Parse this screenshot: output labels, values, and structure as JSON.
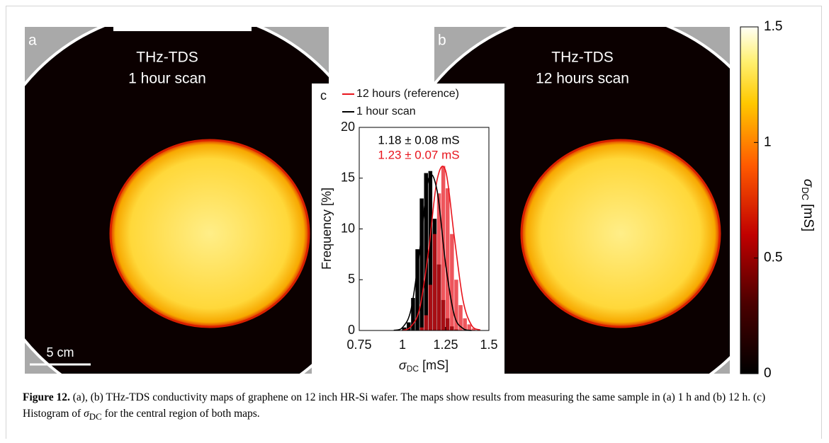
{
  "panels": [
    {
      "label": "a",
      "title": "THz-TDS",
      "subtitle": "1 hour scan",
      "scale_bar": "5 cm"
    },
    {
      "label": "b",
      "title": "THz-TDS",
      "subtitle": "12 hours scan"
    }
  ],
  "colorbar": {
    "label_symbol": "σ",
    "label_sub": "DC",
    "label_unit": "[mS]",
    "lim": [
      0,
      1.5
    ],
    "ticks": [
      0,
      0.5,
      1,
      1.5
    ]
  },
  "chart_data": {
    "type": "histogram",
    "panel_label": "c",
    "xlabel_symbol": "σ",
    "xlabel_sub": "DC",
    "xlabel_unit": "[mS]",
    "ylabel": "Frequency [%]",
    "xlim": [
      0.75,
      1.5
    ],
    "xticks": [
      0.75,
      1,
      1.25,
      1.5
    ],
    "ylim": [
      0,
      20
    ],
    "yticks": [
      0,
      5,
      10,
      15,
      20
    ],
    "bins": [
      1.0,
      1.025,
      1.05,
      1.075,
      1.1,
      1.125,
      1.15,
      1.175,
      1.2,
      1.225,
      1.25,
      1.275,
      1.3,
      1.325,
      1.35,
      1.375,
      1.4,
      1.425
    ],
    "series": [
      {
        "name": "12 hours (reference)",
        "color": "#e8141c",
        "annotation": "1.23 ± 0.07 mS",
        "values": [
          0,
          0,
          0,
          0,
          0.3,
          1.5,
          4.5,
          9.5,
          13.5,
          16.2,
          14,
          9.5,
          5,
          2.5,
          1.2,
          0.6,
          0.2
        ],
        "fit": {
          "x": [
            1.0,
            1.05,
            1.1,
            1.15,
            1.2,
            1.25,
            1.3,
            1.35,
            1.4,
            1.45
          ],
          "values": [
            0,
            0.4,
            2.2,
            7.7,
            14.8,
            15.7,
            9.2,
            3,
            0.5,
            0.05
          ]
        }
      },
      {
        "name": "1 hour scan",
        "color": "#000000",
        "annotation": "1.18 ± 0.08 mS",
        "values": [
          0.3,
          0.8,
          3.2,
          8,
          13,
          15.5,
          15.7,
          11,
          6.5,
          3,
          1.2,
          0.4,
          0.1,
          0,
          0,
          0,
          0
        ],
        "fit": {
          "x": [
            0.95,
            1.0,
            1.05,
            1.1,
            1.15,
            1.2,
            1.25,
            1.3,
            1.35,
            1.4
          ],
          "values": [
            0.02,
            0.3,
            2.1,
            7.9,
            14.9,
            13.8,
            6.5,
            1.5,
            0.2,
            0
          ]
        }
      }
    ]
  },
  "caption": {
    "label": "Figure 12.",
    "text_1": "(a), (b) THz-TDS conductivity maps of graphene on 12 inch HR-Si wafer. The maps show results from measuring the same sample in (a) 1 h and (b) 12 h. (c) Histogram of",
    "symbol": "σ",
    "sub": "DC",
    "text_2": "for the central region of both maps."
  }
}
